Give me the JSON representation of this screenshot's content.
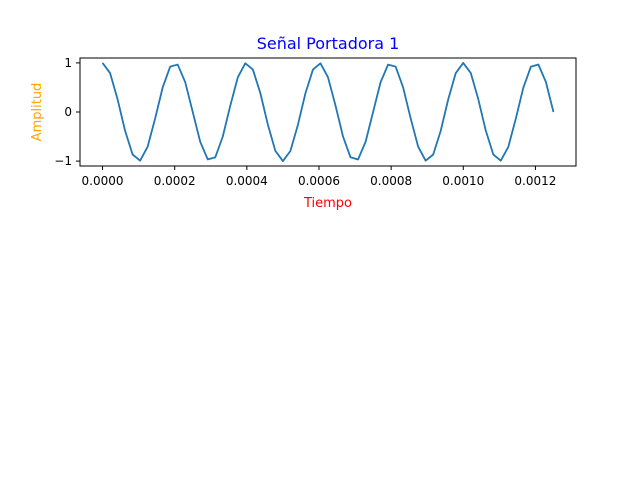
{
  "chart_data": {
    "type": "line",
    "title": "Señal Portadora 1",
    "xlabel": "Tiempo",
    "ylabel": "Amplitud",
    "xlim": [
      -6.25e-05,
      0.0013125
    ],
    "ylim": [
      -1.1,
      1.1
    ],
    "xticks": [
      0,
      0.0002,
      0.0004,
      0.0006,
      0.0008,
      0.001,
      0.0012
    ],
    "xtick_labels": [
      "0.0000",
      "0.0002",
      "0.0004",
      "0.0006",
      "0.0008",
      "0.0010",
      "0.0012"
    ],
    "yticks": [
      1,
      0,
      -1
    ],
    "ytick_labels": [
      "1",
      "0",
      "−1"
    ],
    "frequency_hz": 5000,
    "sample_step": 2.083e-05,
    "samples": 61,
    "series": [
      {
        "function": "cos(2*pi*f*t)",
        "x_start": 0,
        "x_end": 0.00125,
        "y_end": 0
      }
    ],
    "grid": false,
    "legend": "none"
  },
  "colors": {
    "title": "#0000ff",
    "xlabel": "#ff0000",
    "ylabel": "#ffa500",
    "line": "#1f77b4",
    "axes": "#000000"
  }
}
